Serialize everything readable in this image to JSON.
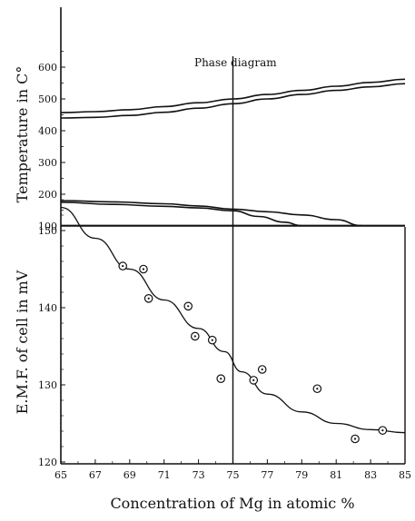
{
  "chart_data": [
    {
      "panel": "phase-diagram",
      "type": "line",
      "annotation": "Phase diagram",
      "ylabel": "Temperature in C°",
      "yticks": [
        100,
        200,
        300,
        400,
        500,
        600
      ],
      "ylim": [
        100,
        650
      ],
      "xlim": [
        65,
        85
      ],
      "vertical_marker_x": 75,
      "series": [
        {
          "x": [
            65,
            67,
            69,
            71,
            73,
            75,
            77,
            79,
            81,
            83,
            85
          ],
          "values": [
            457,
            460,
            466,
            476,
            488,
            500,
            514,
            527,
            540,
            552,
            562
          ]
        },
        {
          "x": [
            65,
            67,
            69,
            71,
            73,
            75,
            77,
            79,
            81,
            83,
            85
          ],
          "values": [
            440,
            442,
            448,
            458,
            471,
            485,
            500,
            514,
            527,
            538,
            548
          ]
        },
        {
          "x": [
            65,
            67,
            69,
            71,
            73,
            75,
            77,
            79,
            81,
            83,
            85
          ],
          "values": [
            101,
            101,
            101,
            101,
            101,
            101,
            101,
            101,
            101,
            101,
            101
          ]
        },
        {
          "x": [
            65,
            68,
            71,
            73,
            75,
            76.5,
            78,
            79
          ],
          "values": [
            175,
            168,
            162,
            157,
            148,
            130,
            112,
            101
          ]
        },
        {
          "x": [
            65,
            68,
            71,
            73,
            75,
            77,
            79,
            81,
            82.5
          ],
          "values": [
            180,
            176,
            170,
            163,
            153,
            145,
            135,
            120,
            101
          ]
        }
      ]
    },
    {
      "panel": "emf",
      "type": "scatter",
      "xlabel": "Concentration of Mg in atomic %",
      "ylabel": "E.M.F. of cell in mV",
      "xticks": [
        65,
        67,
        69,
        71,
        73,
        75,
        77,
        79,
        81,
        83,
        85
      ],
      "yticks": [
        120,
        130,
        140,
        150
      ],
      "xlim": [
        65,
        85
      ],
      "ylim": [
        120,
        155
      ],
      "vertical_marker_x": 75,
      "points": {
        "x": [
          68.6,
          69.8,
          70.1,
          72.4,
          72.8,
          73.8,
          74.3,
          76.2,
          76.7,
          79.9,
          82.1,
          83.7
        ],
        "y": [
          145.4,
          145.0,
          141.2,
          140.2,
          136.3,
          135.8,
          130.8,
          130.6,
          132.0,
          129.5,
          123.0,
          124.1
        ]
      },
      "curve": {
        "x": [
          65,
          67,
          69,
          71,
          73,
          74.5,
          75.5,
          77,
          79,
          81,
          83,
          85
        ],
        "y": [
          153,
          149,
          145,
          141,
          137.3,
          134.3,
          131.7,
          128.8,
          126.5,
          125.0,
          124.2,
          123.8
        ]
      }
    }
  ]
}
